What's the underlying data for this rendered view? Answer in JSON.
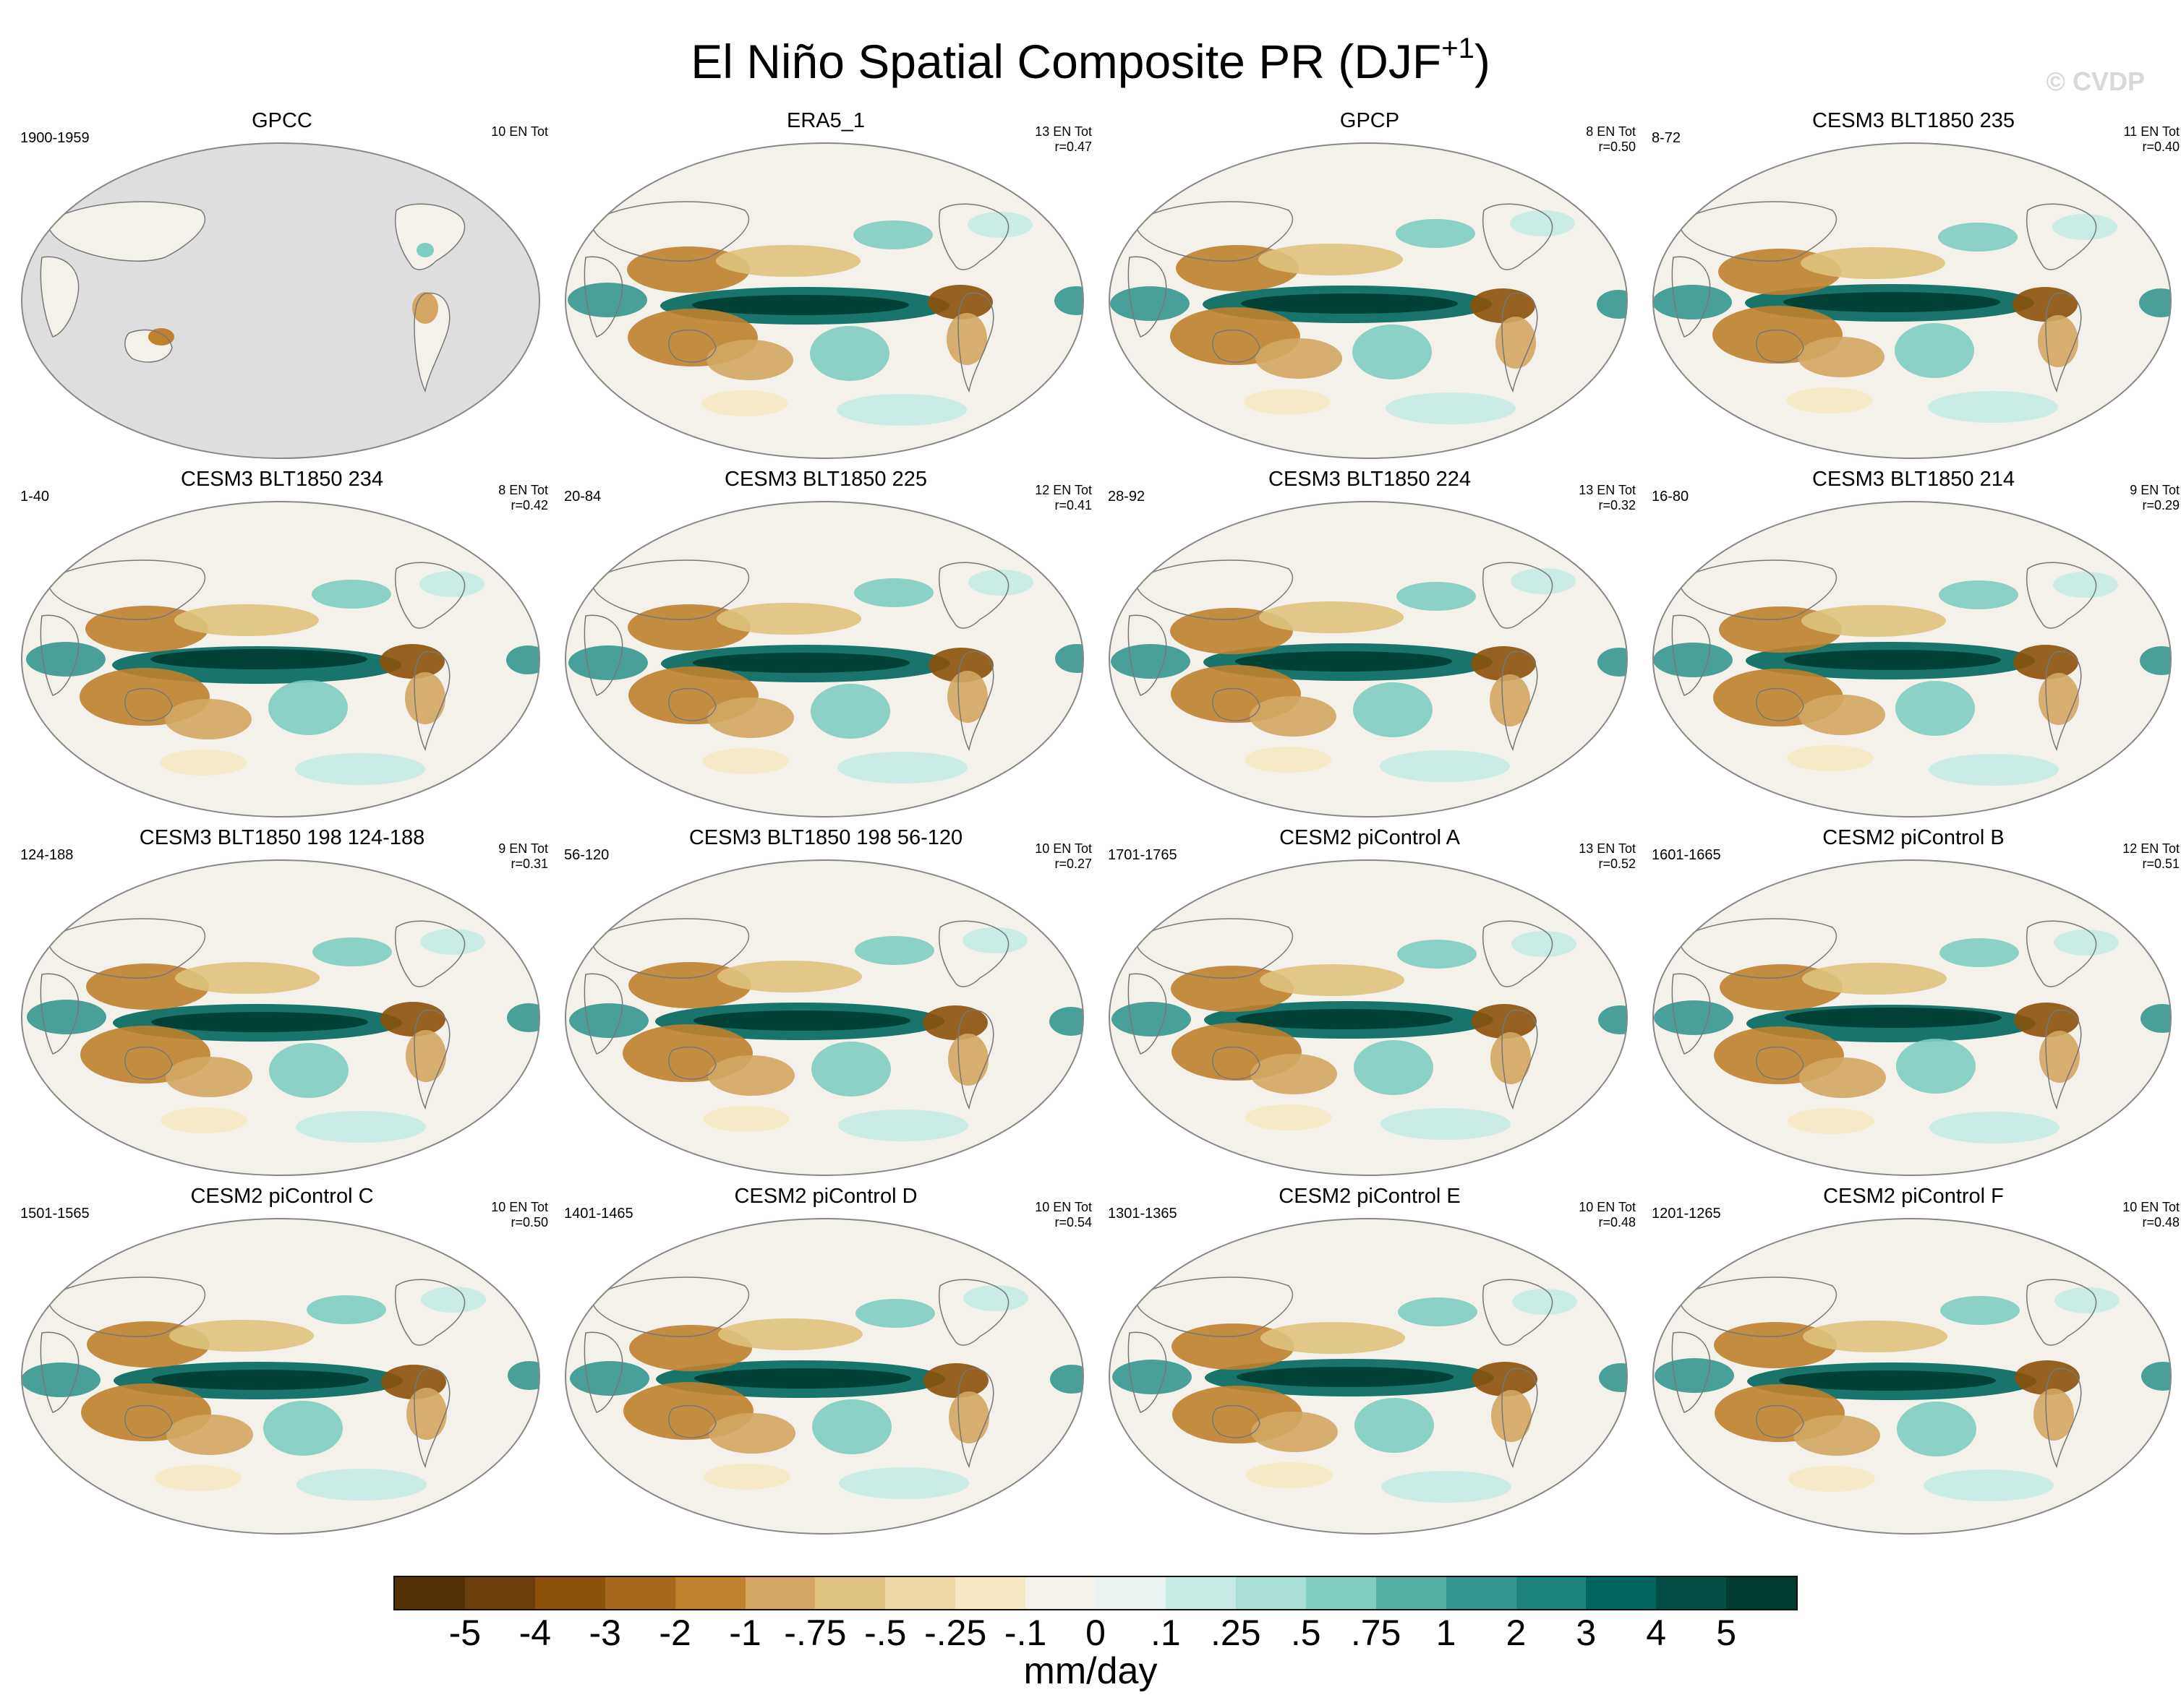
{
  "title_main": "El Niño Spatial Composite PR (DJF",
  "title_sup": "+1",
  "title_end": ")",
  "watermark": "© CVDP",
  "units": "mm/day",
  "colorbar": {
    "labels": [
      "-5",
      "-4",
      "-3",
      "-2",
      "-1",
      "-.75",
      "-.5",
      "-.25",
      "-.1",
      "0",
      ".1",
      ".25",
      ".5",
      ".75",
      "1",
      "2",
      "3",
      "4",
      "5"
    ],
    "colors": [
      "#543005",
      "#6b3e0b",
      "#8c510a",
      "#a8691f",
      "#bf812d",
      "#d3a663",
      "#dfc27d",
      "#eed8a6",
      "#f6e8c3",
      "#f4f1ea",
      "#e8f2f0",
      "#c7eae5",
      "#a8ded5",
      "#80cdc1",
      "#56b1a5",
      "#35978f",
      "#1e8378",
      "#01665e",
      "#024d44",
      "#003c30"
    ]
  },
  "panels": [
    {
      "name": "GPCC",
      "years": "1900-1959",
      "en": "10 EN Tot",
      "r": "",
      "missing_ocean": true
    },
    {
      "name": "ERA5_1",
      "years": "",
      "en": "13 EN Tot",
      "r": "r=0.47"
    },
    {
      "name": "GPCP",
      "years": "",
      "en": "8 EN Tot",
      "r": "r=0.50"
    },
    {
      "name": "CESM3 BLT1850 235",
      "years": "8-72",
      "en": "11 EN Tot",
      "r": "r=0.40"
    },
    {
      "name": "CESM3 BLT1850 234",
      "years": "1-40",
      "en": "8 EN Tot",
      "r": "r=0.42"
    },
    {
      "name": "CESM3 BLT1850 225",
      "years": "20-84",
      "en": "12 EN Tot",
      "r": "r=0.41"
    },
    {
      "name": "CESM3 BLT1850 224",
      "years": "28-92",
      "en": "13 EN Tot",
      "r": "r=0.32"
    },
    {
      "name": "CESM3 BLT1850 214",
      "years": "16-80",
      "en": "9 EN Tot",
      "r": "r=0.29"
    },
    {
      "name": "CESM3 BLT1850 198 124-188",
      "years": "124-188",
      "en": "9 EN Tot",
      "r": "r=0.31"
    },
    {
      "name": "CESM3 BLT1850 198 56-120",
      "years": "56-120",
      "en": "10 EN Tot",
      "r": "r=0.27"
    },
    {
      "name": "CESM2 piControl A",
      "years": "1701-1765",
      "en": "13 EN Tot",
      "r": "r=0.52"
    },
    {
      "name": "CESM2 piControl B",
      "years": "1601-1665",
      "en": "12 EN Tot",
      "r": "r=0.51"
    },
    {
      "name": "CESM2 piControl C",
      "years": "1501-1565",
      "en": "10 EN Tot",
      "r": "r=0.50"
    },
    {
      "name": "CESM2 piControl D",
      "years": "1401-1465",
      "en": "10 EN Tot",
      "r": "r=0.54"
    },
    {
      "name": "CESM2 piControl E",
      "years": "1301-1365",
      "en": "10 EN Tot",
      "r": "r=0.48"
    },
    {
      "name": "CESM2 piControl F",
      "years": "1201-1265",
      "en": "10 EN Tot",
      "r": "r=0.48"
    }
  ]
}
